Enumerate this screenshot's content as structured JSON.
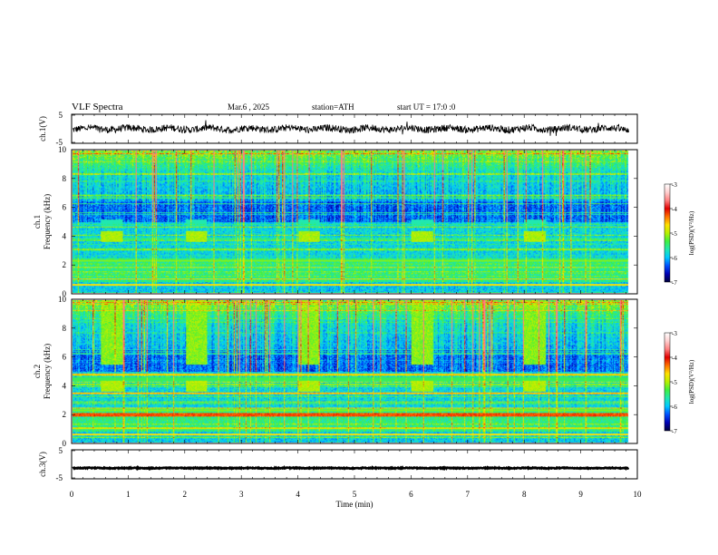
{
  "header": {
    "title": "VLF Spectra",
    "date": "Mar.6 , 2025",
    "station": "station=ATH",
    "start": "start UT = 17:0 :0"
  },
  "colors": {
    "cmap": [
      "#00003a",
      "#0000b4",
      "#0050ff",
      "#00c8ff",
      "#20e8b0",
      "#40f040",
      "#b8f000",
      "#ffe000",
      "#ff7000",
      "#e00000",
      "#ff8080",
      "#ffd0d0",
      "#ffffff"
    ]
  },
  "chart_data": [
    {
      "type": "line",
      "panel": "ch1-waveform",
      "ylabel": "ch.1(V)",
      "ylim": [
        -5,
        5
      ],
      "yticks": [
        5,
        -5
      ],
      "xlim": [
        0,
        10
      ],
      "x_end": 9.85,
      "series": [
        {
          "baseline": 0,
          "amplitude": 1.2
        }
      ]
    },
    {
      "type": "heatmap",
      "panel": "ch1-spectrogram",
      "ylabel_top": "ch.1",
      "ylabel": "Frequency (kHz)",
      "ylim": [
        0,
        10
      ],
      "yticks": [
        "0",
        "2",
        "4",
        "6",
        "8",
        "10"
      ],
      "colorbar": {
        "label": "log(PSD)(V²/Hz)",
        "range": [
          -7,
          -3
        ],
        "ticks": [
          "-3",
          "-4",
          "-5",
          "-6",
          "-7"
        ]
      },
      "transmitter_bursts_min": [
        0.5,
        2.0,
        4.0,
        6.0,
        8.0
      ],
      "burst_freq_khz": [
        3.6,
        4.4
      ]
    },
    {
      "type": "heatmap",
      "panel": "ch2-spectrogram",
      "ylabel_top": "ch.2",
      "ylabel": "Frequency (kHz)",
      "ylim": [
        0,
        10
      ],
      "yticks": [
        "0",
        "2",
        "4",
        "6",
        "8",
        "10"
      ],
      "colorbar": {
        "label": "log(PSD)(V²/Hz)",
        "range": [
          -7,
          -3
        ],
        "ticks": [
          "-3",
          "-4",
          "-5",
          "-6",
          "-7"
        ]
      },
      "transmitter_bursts_min": [
        0.5,
        2.0,
        4.0,
        6.0,
        8.0
      ],
      "burst_freq_khz": [
        3.6,
        4.4
      ]
    },
    {
      "type": "line",
      "panel": "ch3-waveform",
      "ylabel": "ch.3(V)",
      "ylim": [
        -5,
        5
      ],
      "yticks": [
        "5",
        "-5"
      ],
      "xlim": [
        0,
        10
      ],
      "x_end": 9.85,
      "xlabel": "Time (min)",
      "xticks": [
        "0",
        "1",
        "2",
        "3",
        "4",
        "5",
        "6",
        "7",
        "8",
        "9",
        "10"
      ],
      "series": [
        {
          "baseline": -1.3,
          "amplitude": 0.15
        }
      ]
    }
  ]
}
